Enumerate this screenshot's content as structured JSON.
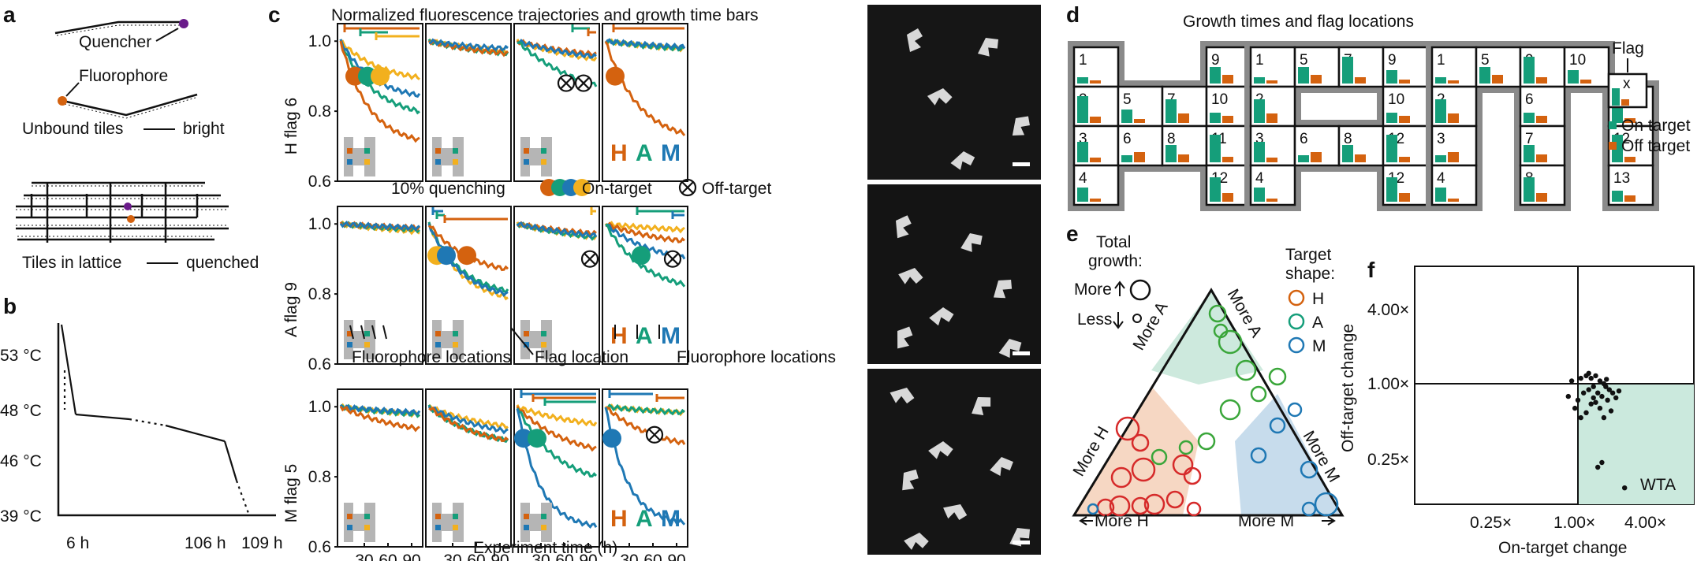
{
  "panels": {
    "a": "a",
    "b": "b",
    "c": "c",
    "d": "d",
    "e": "e",
    "f": "f"
  },
  "colors": {
    "orange": "#d4620f",
    "teal": "#159e7a",
    "yellow": "#f2b01e",
    "blue": "#1f78b4",
    "red": "#d62a2a",
    "green": "#3aa63a",
    "grey": "#b5b5b5",
    "dark_grey": "#7d7d7d"
  },
  "panel_a": {
    "quencher": "Quencher",
    "fluorophore": "Fluorophore",
    "unbound": "Unbound tiles",
    "bright": "bright",
    "lattice": "Tiles in lattice",
    "quenched": "quenched"
  },
  "panel_b": {
    "temps": [
      "53 °C",
      "48 °C",
      "46 °C",
      "39 °C"
    ],
    "times": [
      "6 h",
      "106 h",
      "109 h"
    ]
  },
  "panel_c": {
    "title": "Normalized fluorescence trajectories and growth time bars",
    "row_labels": [
      "H flag 6",
      "A flag 9",
      "M flag 5"
    ],
    "y_ticks": [
      "1.0",
      "0.8",
      "0.6"
    ],
    "x_ticks": [
      "30",
      "60",
      "90"
    ],
    "xlabel": "Experiment time (h)",
    "legend_quench": "10% quenching",
    "legend_on": "On-target",
    "legend_off": "Off-target",
    "annot_fluor_left": "Fluorophore locations",
    "annot_flag": "Flag location",
    "annot_fluor_right": "Fluorophore locations",
    "ham": [
      "H",
      "A",
      "M"
    ]
  },
  "panel_d": {
    "title": "Growth times and flag locations",
    "flag": "Flag",
    "flag_mark": "x",
    "on_target": "On target",
    "off_target": "Off target",
    "h_numbers": [
      "1",
      "2",
      "5",
      "7",
      "3",
      "6",
      "8",
      "4",
      "9",
      "10",
      "11",
      "12"
    ],
    "a_numbers": [
      "1",
      "5",
      "7",
      "9",
      "2",
      "10",
      "3",
      "6",
      "8",
      "4",
      "12"
    ],
    "m_numbers": [
      "1",
      "5",
      "9",
      "10",
      "2",
      "6",
      "11",
      "3",
      "7",
      "12",
      "4",
      "8",
      "13"
    ]
  },
  "panel_e": {
    "total_growth": "Total",
    "growth": "growth:",
    "more": "More",
    "less": "Less",
    "target_shape": "Target",
    "shape": "shape:",
    "legend": [
      "H",
      "A",
      "M"
    ],
    "axes": [
      "More A",
      "More A",
      "More M",
      "More H",
      "More H",
      "More M"
    ]
  },
  "panel_f": {
    "xlabel": "On-target change",
    "ylabel": "Off-target change",
    "x_ticks": [
      "0.25×",
      "1.00×",
      "4.00×"
    ],
    "y_ticks": [
      "4.00×",
      "1.00×",
      "0.25×"
    ],
    "wta": "WTA",
    "points": [
      [
        0.9,
        1.05
      ],
      [
        1.05,
        1.1
      ],
      [
        1.15,
        1.15
      ],
      [
        1.25,
        1.1
      ],
      [
        1.35,
        1.15
      ],
      [
        1.45,
        1.05
      ],
      [
        1.55,
        1.0
      ],
      [
        1.6,
        0.95
      ],
      [
        1.3,
        0.95
      ],
      [
        1.2,
        0.9
      ],
      [
        1.1,
        0.85
      ],
      [
        1.4,
        0.85
      ],
      [
        1.7,
        0.9
      ],
      [
        1.8,
        0.85
      ],
      [
        1.5,
        0.8
      ],
      [
        1.65,
        0.75
      ],
      [
        1.35,
        0.72
      ],
      [
        1.25,
        0.7
      ],
      [
        1.45,
        0.65
      ],
      [
        1.9,
        0.78
      ],
      [
        2.0,
        0.88
      ],
      [
        1.15,
        0.6
      ],
      [
        1.05,
        0.55
      ],
      [
        1.55,
        0.55
      ],
      [
        1.0,
        0.75
      ],
      [
        0.85,
        0.8
      ],
      [
        1.75,
        0.62
      ],
      [
        1.3,
        0.78
      ],
      [
        1.2,
        1.2
      ],
      [
        1.62,
        1.08
      ],
      [
        1.5,
        0.25
      ],
      [
        1.4,
        0.23
      ],
      [
        2.2,
        0.16
      ],
      [
        0.95,
        0.65
      ]
    ]
  }
}
